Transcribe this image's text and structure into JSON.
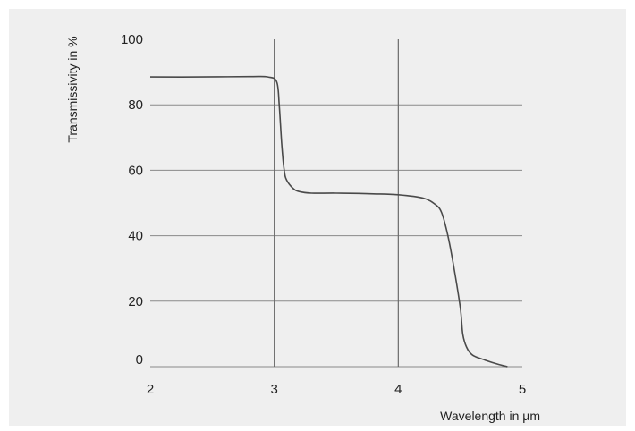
{
  "chart_data": {
    "type": "line",
    "xlabel": "Wavelength in µm",
    "ylabel": "Transmissivity in %",
    "xlim": [
      2,
      5
    ],
    "ylim": [
      0,
      100
    ],
    "x_ticks": [
      "2",
      "3",
      "4",
      "5"
    ],
    "y_ticks": [
      "100",
      "80",
      "60",
      "40",
      "20",
      "0"
    ],
    "grid": true,
    "series": [
      {
        "x": [
          2.0,
          2.4,
          2.8,
          2.95,
          3.02,
          3.04,
          3.06,
          3.08,
          3.1,
          3.15,
          3.2,
          3.3,
          3.5,
          3.8,
          4.0,
          4.2,
          4.3,
          4.35,
          4.4,
          4.45,
          4.5,
          4.52,
          4.55,
          4.6,
          4.7,
          4.8,
          4.88
        ],
        "y": [
          88.5,
          88.5,
          88.6,
          88.5,
          87.0,
          80.0,
          68.0,
          60.0,
          57.0,
          54.5,
          53.5,
          53.0,
          53.0,
          52.8,
          52.5,
          51.5,
          49.5,
          47.0,
          40.0,
          30.0,
          18.0,
          10.0,
          6.0,
          3.5,
          2.0,
          0.8,
          0.0
        ]
      }
    ]
  }
}
